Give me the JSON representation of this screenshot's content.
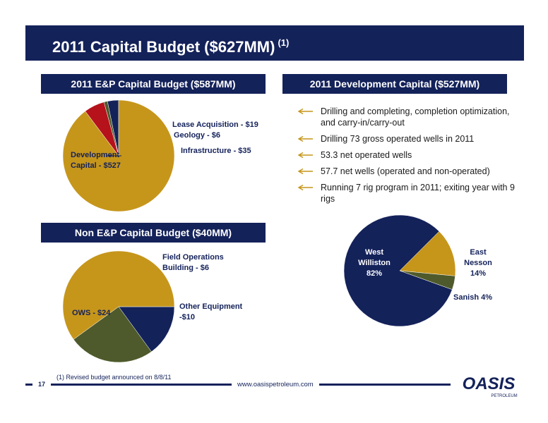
{
  "title": "2011 Capital Budget ($627MM)",
  "title_note": "(1)",
  "ep_header": "2011 E&P Capital Budget ($587MM)",
  "dev_header": "2011 Development Capital ($527MM)",
  "nonep_header": "Non E&P Capital Budget ($40MM)",
  "bullets": [
    "Drilling and completing, completion optimization, and carry-in/carry-out",
    "Drilling 73 gross operated wells in 2011",
    "53.3 net operated wells",
    "57.7 net wells (operated and non-operated)",
    "Running 7 rig program in 2011; exiting year with 9 rigs"
  ],
  "footnote": "(1)   Revised budget announced on 8/8/11",
  "page_number": "17",
  "website": "www.oasispetroleum.com",
  "logo_text": "OASIS",
  "logo_subtext": "PETROLEUM",
  "colors": {
    "navy": "#14225a",
    "gold": "#c6961b",
    "olive": "#4e5a2b",
    "red": "#b5121b"
  },
  "chart_data": [
    {
      "type": "pie",
      "title": "2011 E&P Capital Budget ($587MM)",
      "slices": [
        {
          "label": "Lease Acquisition - $19",
          "value": 19,
          "color": "#14225a"
        },
        {
          "label": "Geology - $6",
          "value": 6,
          "color": "#4e5a2b"
        },
        {
          "label": "Infrastructure - $35",
          "value": 35,
          "color": "#b5121b"
        },
        {
          "label": "Development Capital - $527",
          "value": 527,
          "color": "#c6961b"
        }
      ]
    },
    {
      "type": "pie",
      "title": "Non E&P Capital Budget ($40MM)",
      "slices": [
        {
          "label": "Field Operations Building - $6",
          "value": 6,
          "color": "#14225a"
        },
        {
          "label": "Other Equipment -$10",
          "value": 10,
          "color": "#4e5a2b"
        },
        {
          "label": "OWS - $24",
          "value": 24,
          "color": "#c6961b"
        }
      ]
    },
    {
      "type": "pie",
      "title": "2011 Development Capital ($527MM)",
      "slices": [
        {
          "label": "East Nesson 14%",
          "value": 14,
          "color": "#c6961b"
        },
        {
          "label": "Sanish 4%",
          "value": 4,
          "color": "#4e5a2b"
        },
        {
          "label": "West Williston 82%",
          "value": 82,
          "color": "#14225a"
        }
      ]
    }
  ]
}
